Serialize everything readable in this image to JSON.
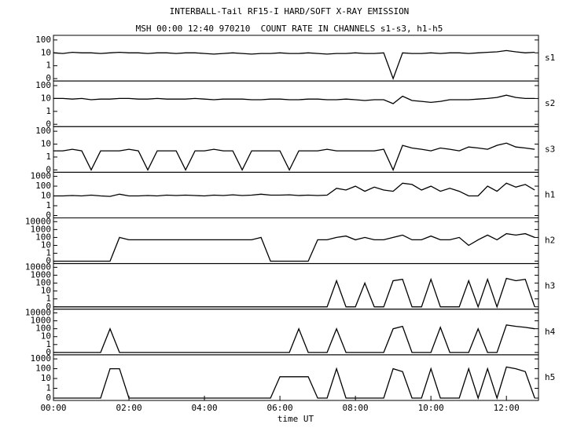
{
  "chart_data": {
    "type": "line",
    "title": "INTERBALL-Tail RF15-I HARD/SOFT X-RAY EMISSION",
    "subtitle": "MSH 00:00 12:40 970210  COUNT RATE IN CHANNELS s1-s3, h1-h5",
    "xlabel": "time UT",
    "yscale": "log",
    "x": [
      0,
      0.25,
      0.5,
      0.75,
      1,
      1.25,
      1.5,
      1.75,
      2,
      2.25,
      2.5,
      2.75,
      3,
      3.25,
      3.5,
      3.75,
      4,
      4.25,
      4.5,
      4.75,
      5,
      5.25,
      5.5,
      5.75,
      6,
      6.25,
      6.5,
      6.75,
      7,
      7.25,
      7.5,
      7.75,
      8,
      8.25,
      8.5,
      8.75,
      9,
      9.25,
      9.5,
      9.75,
      10,
      10.25,
      10.5,
      10.75,
      11,
      11.25,
      11.5,
      11.75,
      12,
      12.25,
      12.5,
      12.75
    ],
    "xlim": [
      0,
      12.85
    ],
    "xticks": [
      {
        "value": 0,
        "label": "00:00"
      },
      {
        "value": 2,
        "label": "02:00"
      },
      {
        "value": 4,
        "label": "04:00"
      },
      {
        "value": 6,
        "label": "06:00"
      },
      {
        "value": 8,
        "label": "08:00"
      },
      {
        "value": 10,
        "label": "10:00"
      },
      {
        "value": 12,
        "label": "12:00"
      }
    ],
    "series": [
      {
        "name": "s1",
        "color": "#000000",
        "ylim": [
          0,
          150
        ],
        "yticks": [
          0,
          1,
          10,
          100
        ],
        "values": [
          10,
          9,
          11,
          10,
          10,
          9,
          10,
          11,
          10,
          10,
          9,
          10,
          10,
          9,
          10,
          10,
          9,
          8,
          9,
          10,
          9,
          8,
          9,
          9,
          10,
          9,
          9,
          10,
          9,
          8,
          9,
          9,
          10,
          9,
          9,
          10,
          0,
          10,
          9,
          9,
          10,
          9,
          10,
          10,
          9,
          10,
          11,
          12,
          15,
          12,
          10,
          11
        ]
      },
      {
        "name": "s2",
        "color": "#000000",
        "ylim": [
          0,
          150
        ],
        "yticks": [
          0,
          1,
          10,
          100
        ],
        "values": [
          10,
          10,
          9,
          10,
          8,
          9,
          9,
          10,
          10,
          9,
          9,
          10,
          9,
          9,
          9,
          10,
          9,
          8,
          9,
          9,
          9,
          8,
          8,
          9,
          9,
          8,
          8,
          9,
          9,
          8,
          8,
          9,
          8,
          7,
          8,
          8,
          4,
          15,
          7,
          6,
          5,
          6,
          8,
          8,
          8,
          9,
          10,
          12,
          18,
          12,
          10,
          10
        ]
      },
      {
        "name": "s3",
        "color": "#000000",
        "ylim": [
          0,
          150
        ],
        "yticks": [
          0,
          1,
          10,
          100
        ],
        "values": [
          3,
          3,
          4,
          3,
          0,
          3,
          3,
          3,
          4,
          3,
          0,
          3,
          3,
          3,
          0,
          3,
          3,
          4,
          3,
          3,
          0,
          3,
          3,
          3,
          3,
          0,
          3,
          3,
          3,
          4,
          3,
          3,
          3,
          3,
          3,
          4,
          0,
          8,
          5,
          4,
          3,
          5,
          4,
          3,
          6,
          5,
          4,
          8,
          12,
          6,
          5,
          4
        ]
      },
      {
        "name": "h1",
        "color": "#000000",
        "ylim": [
          0,
          1500
        ],
        "yticks": [
          0,
          1,
          10,
          100,
          1000
        ],
        "values": [
          10,
          10,
          11,
          10,
          12,
          10,
          9,
          15,
          10,
          10,
          11,
          10,
          12,
          11,
          12,
          11,
          10,
          12,
          11,
          13,
          11,
          12,
          15,
          12,
          12,
          13,
          11,
          12,
          11,
          12,
          60,
          40,
          100,
          30,
          80,
          40,
          30,
          200,
          150,
          40,
          100,
          30,
          60,
          30,
          10,
          10,
          100,
          30,
          200,
          80,
          150,
          40
        ]
      },
      {
        "name": "h2",
        "color": "#000000",
        "ylim": [
          0,
          15000
        ],
        "yticks": [
          0,
          1,
          10,
          100,
          1000,
          10000
        ],
        "values": [
          0,
          0,
          0,
          0,
          0,
          0,
          0,
          100,
          50,
          50,
          50,
          50,
          50,
          50,
          50,
          50,
          50,
          50,
          50,
          50,
          50,
          50,
          100,
          0,
          0,
          0,
          0,
          0,
          50,
          50,
          100,
          150,
          50,
          100,
          50,
          50,
          100,
          200,
          50,
          50,
          150,
          50,
          50,
          100,
          10,
          50,
          200,
          50,
          300,
          200,
          300,
          100
        ]
      },
      {
        "name": "h3",
        "color": "#000000",
        "ylim": [
          0,
          15000
        ],
        "yticks": [
          0,
          1,
          10,
          100,
          1000,
          10000
        ],
        "values": [
          0,
          0,
          0,
          0,
          0,
          0,
          0,
          0,
          0,
          0,
          0,
          0,
          0,
          0,
          0,
          0,
          0,
          0,
          0,
          0,
          0,
          0,
          0,
          0,
          0,
          0,
          0,
          0,
          0,
          0,
          200,
          0,
          0,
          100,
          0,
          0,
          200,
          300,
          0,
          0,
          300,
          0,
          0,
          0,
          200,
          0,
          300,
          0,
          400,
          200,
          300,
          0
        ]
      },
      {
        "name": "h4",
        "color": "#000000",
        "ylim": [
          0,
          15000
        ],
        "yticks": [
          0,
          1,
          10,
          100,
          1000,
          10000
        ],
        "values": [
          0,
          0,
          0,
          0,
          0,
          0,
          100,
          0,
          0,
          0,
          0,
          0,
          0,
          0,
          0,
          0,
          0,
          0,
          0,
          0,
          0,
          0,
          0,
          0,
          0,
          0,
          100,
          0,
          0,
          0,
          100,
          0,
          0,
          0,
          0,
          0,
          100,
          200,
          0,
          0,
          0,
          150,
          0,
          0,
          0,
          100,
          0,
          0,
          300,
          200,
          150,
          100
        ]
      },
      {
        "name": "h5",
        "color": "#000000",
        "ylim": [
          0,
          1500
        ],
        "yticks": [
          0,
          1,
          10,
          100,
          1000
        ],
        "values": [
          0,
          0,
          0,
          0,
          0,
          0,
          100,
          100,
          0,
          0,
          0,
          0,
          0,
          0,
          0,
          0,
          0,
          0,
          0,
          0,
          0,
          0,
          0,
          0,
          15,
          15,
          15,
          15,
          0,
          0,
          100,
          0,
          0,
          0,
          0,
          0,
          100,
          50,
          0,
          0,
          100,
          0,
          0,
          0,
          100,
          0,
          100,
          0,
          150,
          100,
          50,
          0
        ]
      }
    ]
  }
}
